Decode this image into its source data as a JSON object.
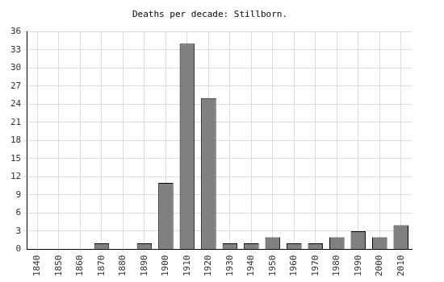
{
  "chart_data": {
    "type": "bar",
    "title": "Deaths per decade: Stillborn.",
    "categories": [
      "1840",
      "1850",
      "1860",
      "1870",
      "1880",
      "1890",
      "1900",
      "1910",
      "1920",
      "1930",
      "1940",
      "1950",
      "1960",
      "1970",
      "1980",
      "1990",
      "2000",
      "2010"
    ],
    "values": [
      0,
      0,
      0,
      1,
      0,
      1,
      11,
      34,
      25,
      1,
      1,
      2,
      1,
      1,
      2,
      3,
      2,
      4
    ],
    "color": "#808080",
    "ylim": [
      0,
      36
    ],
    "yticks": [
      0,
      3,
      6,
      9,
      12,
      15,
      18,
      21,
      24,
      27,
      30,
      33,
      36
    ],
    "grid": true
  }
}
